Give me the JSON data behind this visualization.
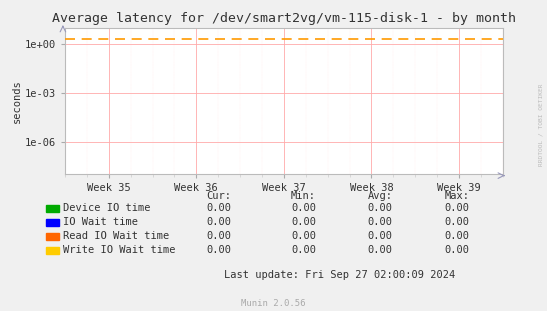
{
  "title": "Average latency for /dev/smart2vg/vm-115-disk-1 - by month",
  "ylabel": "seconds",
  "background_color": "#f0f0f0",
  "plot_bg_color": "#ffffff",
  "grid_color_major": "#ffaaaa",
  "grid_color_minor": "#ffdddd",
  "x_ticks_labels": [
    "Week 35",
    "Week 36",
    "Week 37",
    "Week 38",
    "Week 39"
  ],
  "dashed_line_y": 2.0,
  "dashed_line_color": "#ff9900",
  "right_label": "RRDTOOL / TOBI OETIKER",
  "legend_items": [
    {
      "label": "Device IO time",
      "color": "#00aa00"
    },
    {
      "label": "IO Wait time",
      "color": "#0000ff"
    },
    {
      "label": "Read IO Wait time",
      "color": "#ff6600"
    },
    {
      "label": "Write IO Wait time",
      "color": "#ffcc00"
    }
  ],
  "table_headers": [
    "Cur:",
    "Min:",
    "Avg:",
    "Max:"
  ],
  "table_values": [
    [
      "0.00",
      "0.00",
      "0.00",
      "0.00"
    ],
    [
      "0.00",
      "0.00",
      "0.00",
      "0.00"
    ],
    [
      "0.00",
      "0.00",
      "0.00",
      "0.00"
    ],
    [
      "0.00",
      "0.00",
      "0.00",
      "0.00"
    ]
  ],
  "last_update": "Last update: Fri Sep 27 02:00:09 2024",
  "munin_label": "Munin 2.0.56",
  "title_fontsize": 9.5,
  "axis_fontsize": 7.5,
  "legend_fontsize": 7.5,
  "table_fontsize": 7.5
}
